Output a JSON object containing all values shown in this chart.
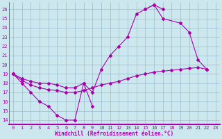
{
  "xlabel": "Windchill (Refroidissement éolien,°C)",
  "bg_color": "#cce8ee",
  "line_color": "#aa00aa",
  "grid_color": "#99bbcc",
  "axis_color": "#aa00aa",
  "xlim": [
    -0.5,
    23.5
  ],
  "ylim": [
    13.5,
    26.8
  ],
  "xticks": [
    0,
    1,
    2,
    3,
    4,
    5,
    6,
    7,
    8,
    9,
    10,
    11,
    12,
    13,
    14,
    15,
    16,
    17,
    18,
    19,
    20,
    21,
    22,
    23
  ],
  "yticks": [
    14,
    15,
    16,
    17,
    18,
    19,
    20,
    21,
    22,
    23,
    24,
    25,
    26
  ],
  "line1_x": [
    0,
    1,
    2,
    3,
    4,
    5,
    6,
    7,
    8,
    9
  ],
  "line1_y": [
    19.0,
    18.0,
    17.0,
    16.0,
    15.5,
    14.5,
    14.0,
    14.0,
    18.0,
    15.5
  ],
  "line2_x": [
    0,
    1,
    2,
    3,
    4,
    5,
    6,
    7,
    8,
    9,
    10,
    11,
    12,
    13,
    14,
    15,
    16,
    17
  ],
  "line2_y": [
    19.0,
    18.5,
    18.2,
    18.0,
    18.0,
    17.8,
    17.5,
    17.5,
    18.0,
    17.0,
    19.5,
    21.0,
    22.0,
    23.0,
    25.5,
    26.0,
    26.5,
    26.0
  ],
  "line3_x": [
    15,
    16,
    17,
    19,
    20,
    21,
    22
  ],
  "line3_y": [
    26.0,
    26.5,
    25.0,
    24.5,
    23.5,
    20.5,
    19.5
  ],
  "line4_x": [
    0,
    1,
    2,
    3,
    4,
    5,
    6,
    7,
    8,
    9,
    10,
    11,
    12,
    13,
    14,
    15,
    16,
    17,
    18,
    19,
    20,
    21,
    22
  ],
  "line4_y": [
    19.0,
    18.3,
    17.8,
    17.5,
    17.3,
    17.2,
    17.0,
    17.0,
    17.2,
    17.5,
    17.8,
    18.0,
    18.2,
    18.5,
    18.8,
    19.0,
    19.2,
    19.3,
    19.4,
    19.5,
    19.6,
    19.7,
    19.5
  ]
}
